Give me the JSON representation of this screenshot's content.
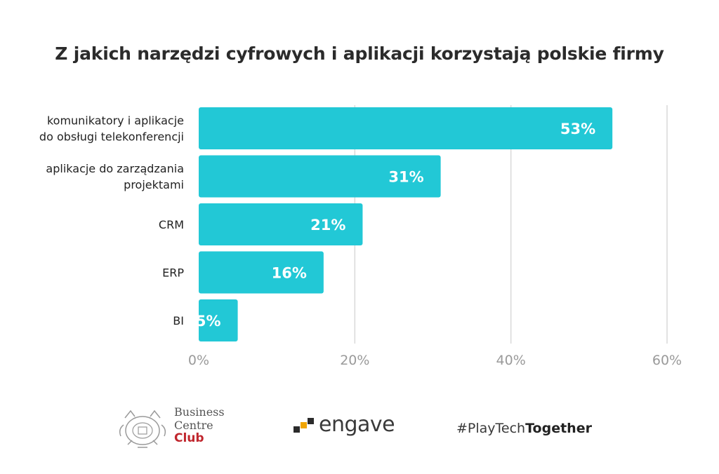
{
  "chart_data": {
    "type": "bar",
    "orientation": "horizontal",
    "title": "Z jakich narzędzi cyfrowych i aplikacji korzystają polskie firmy",
    "categories": [
      [
        "komunikatory i aplikacje",
        "do obsługi telekonferencji"
      ],
      [
        "aplikacje do zarządzania",
        "projektami"
      ],
      [
        "CRM"
      ],
      [
        "ERP"
      ],
      [
        "BI"
      ]
    ],
    "values": [
      53,
      31,
      21,
      16,
      5
    ],
    "value_labels": [
      "53%",
      "31%",
      "21%",
      "16%",
      "5%"
    ],
    "xlim": [
      0,
      60
    ],
    "xticks": [
      0,
      20,
      40,
      60
    ],
    "xtick_labels": [
      "0%",
      "20%",
      "40%",
      "60%"
    ],
    "grid": true,
    "colors": {
      "bar": "#22c8d6",
      "grid": "#d9d9d9",
      "label": "#222222",
      "tick": "#9a9a9a",
      "value_label": "#ffffff"
    }
  },
  "footer": {
    "bcc_line1": "Business",
    "bcc_line2": "Centre",
    "bcc_line3": "Club",
    "engave": "engave",
    "hashtag_prefix": "#PlayTech",
    "hashtag_bold": "Together"
  }
}
